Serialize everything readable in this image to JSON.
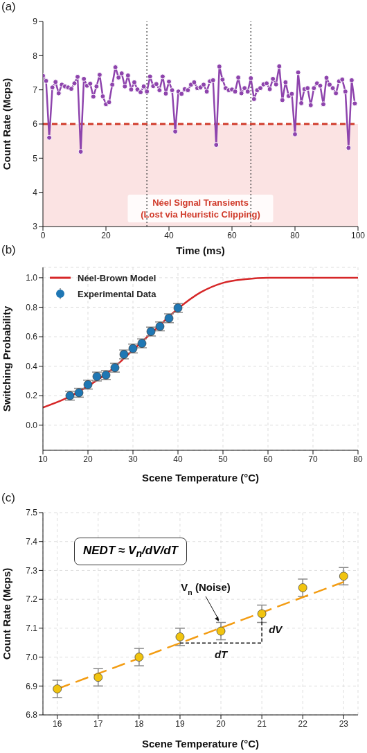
{
  "chart_data": [
    {
      "type": "line",
      "title": "(a)",
      "xlabel": "Time (ms)",
      "ylabel": "Count Rate (Mcps)",
      "x": [
        0,
        1,
        2,
        3,
        4,
        5,
        6,
        7,
        8,
        9,
        10,
        11,
        12,
        13,
        14,
        15,
        16,
        17,
        18,
        19,
        20,
        21,
        22,
        23,
        24,
        25,
        26,
        27,
        28,
        29,
        30,
        31,
        32,
        33,
        34,
        35,
        36,
        37,
        38,
        39,
        40,
        41,
        42,
        43,
        44,
        45,
        46,
        47,
        48,
        49,
        50,
        51,
        52,
        53,
        54,
        55,
        56,
        57,
        58,
        59,
        60,
        61,
        62,
        63,
        64,
        65,
        66,
        67,
        68,
        69,
        70,
        71,
        72,
        73,
        74,
        75,
        76,
        77,
        78,
        79,
        80,
        81,
        82,
        83,
        84,
        85,
        86,
        87,
        88,
        89,
        90,
        91,
        92,
        93,
        94,
        95,
        96,
        97,
        98,
        99
      ],
      "series": [
        {
          "color": "#8e44ad",
          "values": [
            7.41,
            7.26,
            5.6,
            7.07,
            7.23,
            6.9,
            7.15,
            7.1,
            7.07,
            7.03,
            7.19,
            7.38,
            5.19,
            7.32,
            7.12,
            7.18,
            6.8,
            7.1,
            7.44,
            6.81,
            6.58,
            6.64,
            7.15,
            7.66,
            7.36,
            7.48,
            7.1,
            7.42,
            7.01,
            7.22,
            7.01,
            6.93,
            7.1,
            6.95,
            7.39,
            7.11,
            7.17,
            6.99,
            7.39,
            6.89,
            7.24,
            6.99,
            5.78,
            6.95,
            6.88,
            7.02,
            6.99,
            7.15,
            7.22,
            7.05,
            7.07,
            7.15,
            6.95,
            7.25,
            7.28,
            5.39,
            7.68,
            7.3,
            7.05,
            6.99,
            7.01,
            6.95,
            7.36,
            6.9,
            7.05,
            6.95,
            7.34,
            6.73,
            6.99,
            7.05,
            7.16,
            7.19,
            7.02,
            7.32,
            7.16,
            7.69,
            6.7,
            7.22,
            6.82,
            6.88,
            5.7,
            7.51,
            6.61,
            7.02,
            7.05,
            6.55,
            7.05,
            7.19,
            7.12,
            6.58,
            7.35,
            7.15,
            7.05,
            6.9,
            7.25,
            7.3,
            6.95,
            5.3,
            7.28,
            6.6
          ]
        }
      ],
      "xlim": [
        0,
        100
      ],
      "ylim": [
        3,
        9
      ],
      "xticks": [
        0,
        20,
        40,
        60,
        80,
        100
      ],
      "yticks": [
        3,
        4,
        5,
        6,
        7,
        8,
        9
      ],
      "marker": "circle",
      "ref_lines": [
        {
          "axis": "y",
          "value": 6,
          "color": "#d03a2a",
          "line_style": "dashed"
        },
        {
          "axis": "x",
          "value": 33,
          "color": "#555555",
          "line_style": "dotted"
        },
        {
          "axis": "x",
          "value": 66,
          "color": "#555555",
          "line_style": "dotted"
        }
      ],
      "bands": [
        {
          "axis": "y",
          "from": 3,
          "to": 6,
          "label": "Néel Signal Transients\n(Lost via Heuristic Clipping)",
          "color": "#fbe3e3"
        }
      ]
    },
    {
      "type": "line",
      "title": "(b)",
      "xlabel": "Scene Temperature (°C)",
      "ylabel": "Switching Probability",
      "series": [
        {
          "name": "Néel-Brown Model",
          "color": "#d62728",
          "marker": "none",
          "x": [
            10,
            15,
            20,
            25,
            30,
            35,
            40,
            45,
            50,
            55,
            60,
            65,
            70,
            75,
            80
          ],
          "values": [
            0.12,
            0.18,
            0.265,
            0.37,
            0.51,
            0.65,
            0.79,
            0.9,
            0.965,
            0.99,
            1.0,
            1.0,
            1.0,
            1.0,
            1.0
          ]
        },
        {
          "name": "Experimental Data",
          "type": "scatter",
          "color": "#1f77b4",
          "x": [
            16,
            18,
            20,
            22,
            24,
            26,
            28,
            30,
            32,
            34,
            36,
            38,
            40
          ],
          "values": [
            0.2,
            0.22,
            0.275,
            0.33,
            0.34,
            0.39,
            0.48,
            0.52,
            0.555,
            0.635,
            0.67,
            0.725,
            0.795
          ],
          "errors": [
            0.03,
            0.03,
            0.03,
            0.03,
            0.03,
            0.03,
            0.03,
            0.03,
            0.03,
            0.03,
            0.03,
            0.03,
            0.03
          ]
        }
      ],
      "xlim": [
        10,
        80
      ],
      "ylim": [
        -0.17,
        1.07
      ],
      "xticks": [
        10,
        20,
        30,
        40,
        50,
        60,
        70,
        80
      ],
      "yticks": [
        {
          "value": 0,
          "label": "0.0"
        },
        0.2,
        0.4,
        0.6,
        0.8,
        {
          "value": 1,
          "label": "1.0"
        }
      ],
      "grid": true,
      "legend": "top left",
      "marker": "circle"
    },
    {
      "type": "scatter",
      "title": "(c)",
      "xlabel": "Scene Temperature (°C)",
      "ylabel": "Count Rate (Mcps)",
      "series": [
        {
          "color": "#f1c40f",
          "x": [
            16,
            17,
            18,
            19,
            20,
            21,
            22,
            23
          ],
          "values": [
            6.89,
            6.93,
            7.0,
            7.07,
            7.09,
            7.15,
            7.24,
            7.28
          ],
          "errors": [
            0.03,
            0.03,
            0.03,
            0.03,
            0.03,
            0.03,
            0.03,
            0.03
          ]
        },
        {
          "type": "line",
          "color": "#f39c12",
          "line_style": "dashed",
          "marker": "none",
          "x": [
            16,
            23
          ],
          "values": [
            6.89,
            7.26
          ]
        }
      ],
      "xlim": [
        15.65,
        23.35
      ],
      "ylim": [
        6.8,
        7.5
      ],
      "xticks": [
        16,
        17,
        18,
        19,
        20,
        21,
        22,
        23
      ],
      "yticks": [
        6.8,
        6.9,
        {
          "value": 7,
          "label": "7.0"
        },
        7.1,
        7.2,
        7.3,
        7.4,
        7.5
      ],
      "grid": true,
      "marker": "circle",
      "annotations": [
        "NEDT ≈ V$_{n}$/dV/dT",
        "V$_{n}$ (Noise)",
        "dT",
        {
          "text": "dV",
          "x": 21,
          "y": 7.15
        }
      ]
    }
  ]
}
